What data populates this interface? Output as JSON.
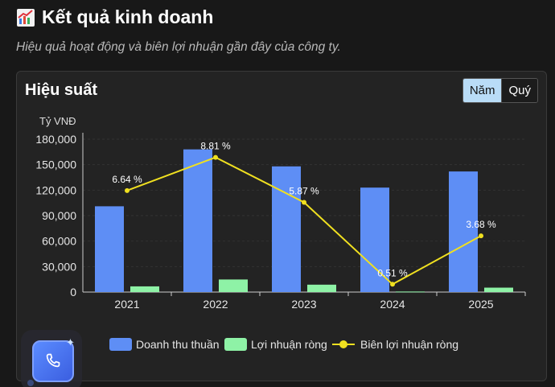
{
  "header": {
    "title": "Kết quả kinh doanh",
    "icon": "chart-increasing-icon"
  },
  "subtitle": "Hiệu quả hoạt động và biên lợi nhuận gần đây của công ty.",
  "card": {
    "title": "Hiệu suất"
  },
  "toggle": {
    "year_label": "Năm",
    "quarter_label": "Quý",
    "selected": "Năm"
  },
  "colors": {
    "revenue": "#5e8ef5",
    "profit": "#8ef2a6",
    "margin": "#f0e020",
    "background": "#181818"
  },
  "chart_data": {
    "type": "bar",
    "categories": [
      "2021",
      "2022",
      "2023",
      "2024",
      "2025"
    ],
    "series": [
      {
        "name": "Doanh thu thuần",
        "type": "bar",
        "values": [
          101000,
          168000,
          148000,
          123000,
          142000
        ]
      },
      {
        "name": "Lợi nhuận ròng",
        "type": "bar",
        "values": [
          6700,
          14800,
          8700,
          630,
          5200
        ]
      },
      {
        "name": "Biên lợi nhuận ròng",
        "type": "line",
        "values": [
          6.64,
          8.81,
          5.87,
          0.51,
          3.68
        ],
        "labels": [
          "6.64 %",
          "8.81 %",
          "5.87 %",
          "0.51 %",
          "3.68 %"
        ]
      }
    ],
    "ylabel": "Tỷ VNĐ",
    "ylim": [
      0,
      180000
    ],
    "yticks": [
      "0",
      "30,000",
      "60,000",
      "90,000",
      "120,000",
      "150,000",
      "180,000"
    ],
    "grid": true,
    "legend": "bottom"
  },
  "fab": {
    "icon": "phone-icon",
    "badge_icon": "sparkle-icon"
  }
}
